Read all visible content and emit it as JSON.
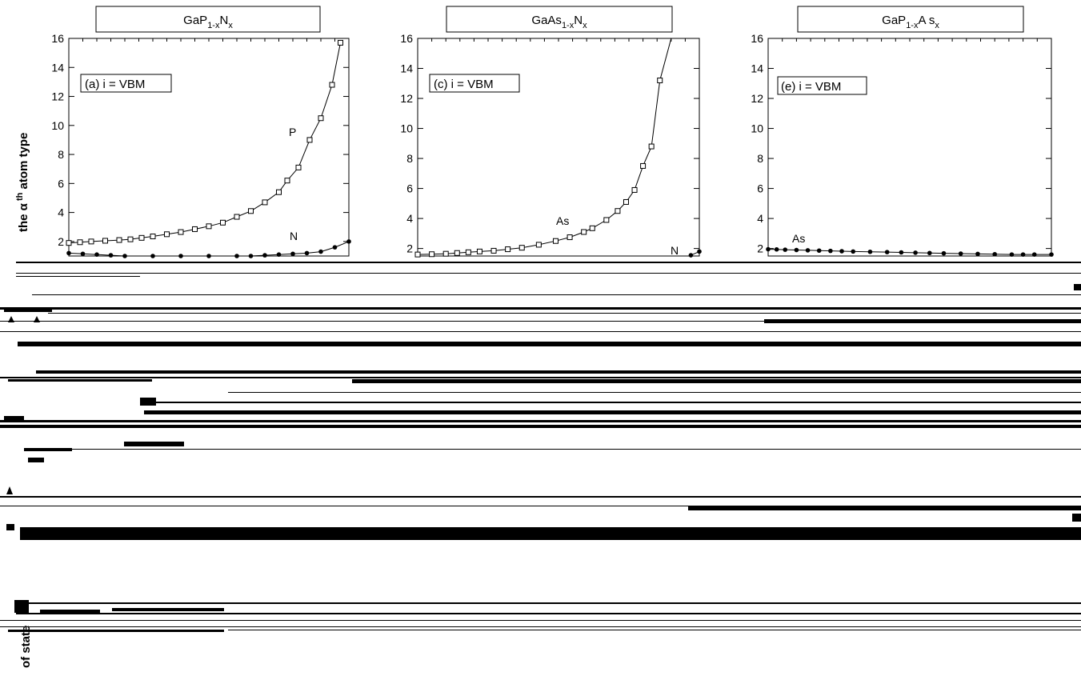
{
  "chart_data": [
    {
      "type": "line",
      "title": "GaP1-xNx",
      "title_parts": {
        "a": "GaP",
        "b": "1-x",
        "c": "N",
        "d": "x"
      },
      "panel_label": "(a) i = VBM",
      "ylim": [
        1,
        16
      ],
      "xlim": [
        0,
        1
      ],
      "yticks": [
        "2",
        "4",
        "6",
        "8",
        "10",
        "12",
        "14",
        "16"
      ],
      "ytick_values": [
        2,
        4,
        6,
        8,
        10,
        12,
        14,
        16
      ],
      "ylabel": "the α th atom type",
      "ylabel_parts": {
        "a": "the ",
        "alpha": "α",
        "th": " th",
        "b": " atom type"
      },
      "series": [
        {
          "name": "P",
          "marker": "square",
          "x": [
            0.0,
            0.04,
            0.08,
            0.13,
            0.18,
            0.22,
            0.26,
            0.3,
            0.35,
            0.4,
            0.45,
            0.5,
            0.55,
            0.6,
            0.65,
            0.7,
            0.75,
            0.78,
            0.82,
            0.86,
            0.9,
            0.94,
            0.97
          ],
          "y": [
            1.9,
            1.95,
            2.0,
            2.05,
            2.1,
            2.15,
            2.25,
            2.35,
            2.5,
            2.65,
            2.85,
            3.05,
            3.3,
            3.7,
            4.1,
            4.7,
            5.4,
            6.2,
            7.1,
            9.0,
            10.5,
            12.8,
            15.7
          ]
        },
        {
          "name": "N",
          "marker": "filled-circle",
          "x": [
            0.0,
            0.05,
            0.1,
            0.15,
            0.2,
            0.3,
            0.4,
            0.5,
            0.6,
            0.65,
            0.7,
            0.75,
            0.8,
            0.85,
            0.9,
            0.95,
            1.0
          ],
          "y": [
            1.2,
            1.15,
            1.1,
            1.05,
            1.0,
            0.98,
            0.98,
            0.98,
            0.98,
            1.0,
            1.05,
            1.1,
            1.15,
            1.2,
            1.3,
            1.6,
            2.0
          ]
        }
      ]
    },
    {
      "type": "line",
      "title": "GaAs1-xNx",
      "title_parts": {
        "a": "GaAs",
        "b": "1-x",
        "c": "N",
        "d": "x"
      },
      "panel_label": "(c) i = VBM",
      "ylim": [
        1.5,
        16
      ],
      "xlim": [
        0,
        1
      ],
      "yticks": [
        "2",
        "4",
        "6",
        "8",
        "10",
        "12",
        "14",
        "16"
      ],
      "ytick_values": [
        2,
        4,
        6,
        8,
        10,
        12,
        14,
        16
      ],
      "series": [
        {
          "name": "As",
          "marker": "square",
          "x": [
            0.0,
            0.05,
            0.1,
            0.14,
            0.18,
            0.22,
            0.27,
            0.32,
            0.37,
            0.43,
            0.49,
            0.54,
            0.59,
            0.62,
            0.67,
            0.71,
            0.74,
            0.77,
            0.8,
            0.83,
            0.86,
            0.9,
            0.93
          ],
          "y": [
            1.6,
            1.62,
            1.65,
            1.7,
            1.75,
            1.8,
            1.85,
            1.95,
            2.05,
            2.25,
            2.5,
            2.75,
            3.1,
            3.35,
            3.9,
            4.5,
            5.1,
            5.9,
            7.5,
            8.8,
            13.2,
            16.2,
            16.5
          ]
        },
        {
          "name": "N",
          "marker": "filled-circle",
          "x": [
            0.97,
            1.0
          ],
          "y": [
            1.55,
            1.8
          ]
        }
      ]
    },
    {
      "type": "line",
      "title": "GaP1-xAsx",
      "title_parts": {
        "a": "GaP",
        "b": "1-x",
        "c": "A s",
        "d": "x"
      },
      "panel_label": "(e) i = VBM",
      "ylim": [
        1.5,
        16
      ],
      "xlim": [
        0,
        1
      ],
      "yticks": [
        "2",
        "4",
        "6",
        "8",
        "10",
        "12",
        "14",
        "16"
      ],
      "ytick_values": [
        2,
        4,
        6,
        8,
        10,
        12,
        14,
        16
      ],
      "series": [
        {
          "name": "As",
          "marker": "filled-circle",
          "x": [
            0.0,
            0.03,
            0.06,
            0.1,
            0.14,
            0.18,
            0.22,
            0.26,
            0.3,
            0.36,
            0.42,
            0.47,
            0.52,
            0.57,
            0.62,
            0.68,
            0.74,
            0.8,
            0.86,
            0.9,
            0.94,
            1.0
          ],
          "y": [
            1.95,
            1.94,
            1.92,
            1.9,
            1.88,
            1.86,
            1.84,
            1.82,
            1.8,
            1.78,
            1.76,
            1.74,
            1.72,
            1.7,
            1.68,
            1.66,
            1.64,
            1.62,
            1.6,
            1.6,
            1.6,
            1.6
          ]
        }
      ]
    }
  ],
  "lower_axis_label": "of state"
}
